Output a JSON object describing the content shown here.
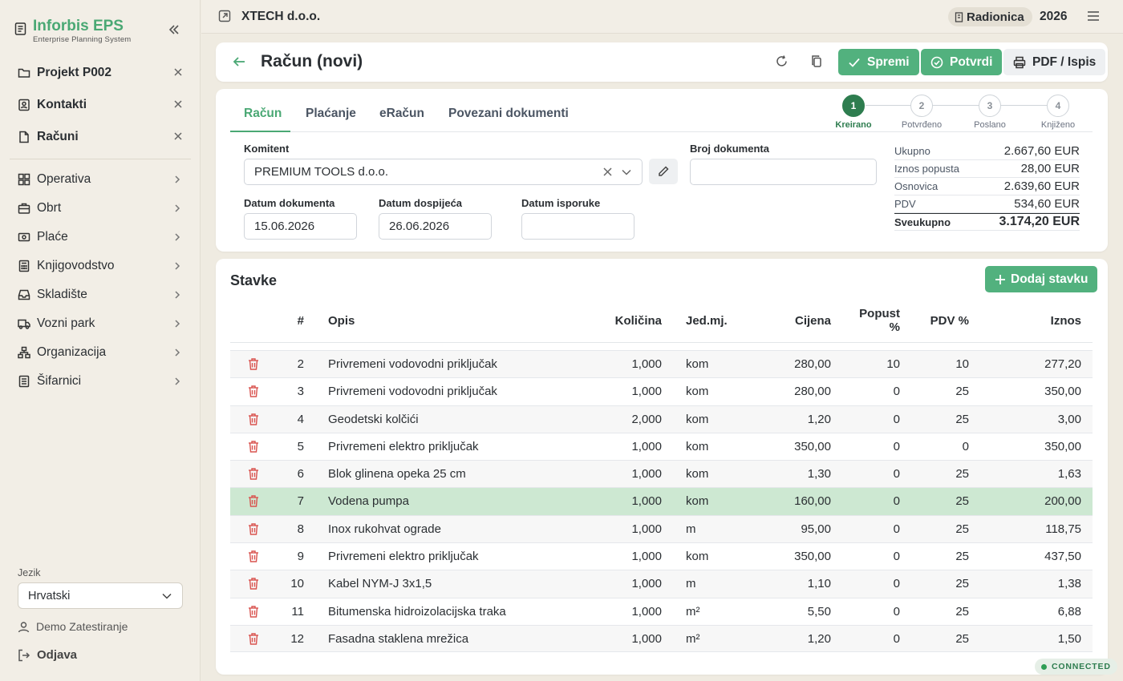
{
  "brand": {
    "title": "Inforbis EPS",
    "subtitle": "Enterprise Planning System"
  },
  "open_docs": [
    {
      "label": "Projekt P002",
      "icon": "folder-icon"
    },
    {
      "label": "Kontakti",
      "icon": "contact-icon"
    },
    {
      "label": "Računi",
      "icon": "document-icon"
    }
  ],
  "nav": [
    {
      "label": "Operativa",
      "icon": "grid-icon"
    },
    {
      "label": "Obrt",
      "icon": "briefcase-icon"
    },
    {
      "label": "Plaće",
      "icon": "money-icon"
    },
    {
      "label": "Knjigovodstvo",
      "icon": "calculator-icon"
    },
    {
      "label": "Skladište",
      "icon": "inbox-icon"
    },
    {
      "label": "Vozni park",
      "icon": "truck-icon"
    },
    {
      "label": "Organizacija",
      "icon": "org-chart-icon"
    },
    {
      "label": "Šifarnici",
      "icon": "list-icon"
    }
  ],
  "language": {
    "label": "Jezik",
    "value": "Hrvatski"
  },
  "user": {
    "name": "Demo Zatestiranje"
  },
  "logout": "Odjava",
  "topbar": {
    "company": "XTECH d.o.o.",
    "workshop": "Radionica",
    "year": "2026"
  },
  "header": {
    "title": "Račun (novi)",
    "save": "Spremi",
    "confirm": "Potvrdi",
    "pdf": "PDF / Ispis"
  },
  "tabs": [
    "Račun",
    "Plaćanje",
    "eRačun",
    "Povezani dokumenti"
  ],
  "steps": [
    {
      "num": "1",
      "label": "Kreirano"
    },
    {
      "num": "2",
      "label": "Potvrđeno"
    },
    {
      "num": "3",
      "label": "Poslano"
    },
    {
      "num": "4",
      "label": "Knjiženo"
    }
  ],
  "form": {
    "komitent_label": "Komitent",
    "komitent": "PREMIUM TOOLS d.o.o.",
    "broj_label": "Broj dokumenta",
    "broj": "",
    "datum_label": "Datum dokumenta",
    "datum": "15.06.2026",
    "dospijece_label": "Datum dospijeća",
    "dospijece": "26.06.2026",
    "isporuka_label": "Datum isporuke",
    "isporuka": ""
  },
  "totals": [
    {
      "label": "Ukupno",
      "value": "2.667,60 EUR"
    },
    {
      "label": "Iznos popusta",
      "value": "28,00 EUR"
    },
    {
      "label": "Osnovica",
      "value": "2.639,60 EUR"
    },
    {
      "label": "PDV",
      "value": "534,60 EUR"
    },
    {
      "label": "Sveukupno",
      "value": "3.174,20 EUR"
    }
  ],
  "items": {
    "title": "Stavke",
    "add_label": "Dodaj stavku",
    "columns": {
      "num": "#",
      "desc": "Opis",
      "qty": "Količina",
      "unit": "Jed.mj.",
      "price": "Cijena",
      "disc": "Popust %",
      "vat": "PDV %",
      "amount": "Iznos"
    },
    "rows": [
      {
        "num": "2",
        "desc": "Privremeni vodovodni priključak",
        "qty": "1,000",
        "unit": "kom",
        "price": "280,00",
        "disc": "10",
        "vat": "10",
        "amount": "277,20"
      },
      {
        "num": "3",
        "desc": "Privremeni vodovodni priključak",
        "qty": "1,000",
        "unit": "kom",
        "price": "280,00",
        "disc": "0",
        "vat": "25",
        "amount": "350,00"
      },
      {
        "num": "4",
        "desc": "Geodetski kolčići",
        "qty": "2,000",
        "unit": "kom",
        "price": "1,20",
        "disc": "0",
        "vat": "25",
        "amount": "3,00"
      },
      {
        "num": "5",
        "desc": "Privremeni elektro priključak",
        "qty": "1,000",
        "unit": "kom",
        "price": "350,00",
        "disc": "0",
        "vat": "0",
        "amount": "350,00"
      },
      {
        "num": "6",
        "desc": "Blok glinena opeka 25 cm",
        "qty": "1,000",
        "unit": "kom",
        "price": "1,30",
        "disc": "0",
        "vat": "25",
        "amount": "1,63"
      },
      {
        "num": "7",
        "desc": "Vodena pumpa",
        "qty": "1,000",
        "unit": "kom",
        "price": "160,00",
        "disc": "0",
        "vat": "25",
        "amount": "200,00"
      },
      {
        "num": "8",
        "desc": "Inox rukohvat ograde",
        "qty": "1,000",
        "unit": "m",
        "price": "95,00",
        "disc": "0",
        "vat": "25",
        "amount": "118,75"
      },
      {
        "num": "9",
        "desc": "Privremeni elektro priključak",
        "qty": "1,000",
        "unit": "kom",
        "price": "350,00",
        "disc": "0",
        "vat": "25",
        "amount": "437,50"
      },
      {
        "num": "10",
        "desc": "Kabel NYM-J 3x1,5",
        "qty": "1,000",
        "unit": "m",
        "price": "1,10",
        "disc": "0",
        "vat": "25",
        "amount": "1,38"
      },
      {
        "num": "11",
        "desc": "Bitumenska hidroizolacijska traka",
        "qty": "1,000",
        "unit": "m²",
        "price": "5,50",
        "disc": "0",
        "vat": "25",
        "amount": "6,88"
      },
      {
        "num": "12",
        "desc": "Fasadna staklena mrežica",
        "qty": "1,000",
        "unit": "m²",
        "price": "1,20",
        "disc": "0",
        "vat": "25",
        "amount": "1,50"
      }
    ]
  },
  "status": "CONNECTED",
  "colors": {
    "accent": "#4aa874",
    "button_green": "#52b17e",
    "selected_row": "#cde8d2",
    "delete": "#d9534f",
    "step_active": "#2e7d4f"
  }
}
